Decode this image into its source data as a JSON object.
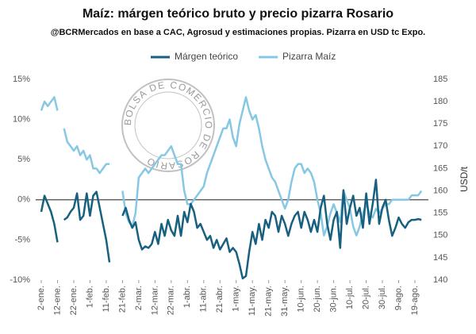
{
  "chart_data": {
    "type": "line",
    "title": "Maíz: márgen teórico bruto y precio pizarra Rosario",
    "subtitle": "@BCRMercados en base a CAC, Agrosud y estimaciones propias. Pizarra en USD tc Expo.",
    "watermark": "BOLSA DE COMERCIO DE ROSARIO",
    "y2label": "USD/t",
    "categories": [
      "2-ene.",
      null,
      null,
      null,
      null,
      "12-ene.",
      null,
      null,
      null,
      null,
      "22-ene.",
      null,
      null,
      null,
      null,
      "1-feb.",
      null,
      null,
      null,
      null,
      "11-feb.",
      null,
      null,
      null,
      null,
      "21-feb.",
      null,
      null,
      null,
      null,
      "2-mar.",
      null,
      null,
      null,
      null,
      "12-mar.",
      null,
      null,
      null,
      null,
      "22-mar.",
      null,
      null,
      null,
      null,
      "1-abr.",
      null,
      null,
      null,
      null,
      "11-abr.",
      null,
      null,
      null,
      null,
      "21-abr.",
      null,
      null,
      null,
      null,
      "1-may.",
      null,
      null,
      null,
      null,
      "11-may.",
      null,
      null,
      null,
      null,
      "21-may.",
      null,
      null,
      null,
      null,
      "31-may.",
      null,
      null,
      null,
      null,
      "10-jun.",
      null,
      null,
      null,
      null,
      "20-jun.",
      null,
      null,
      null,
      null,
      "30-jun.",
      null,
      null,
      null,
      null,
      "10-jul.",
      null,
      null,
      null,
      null,
      "20-jul.",
      null,
      null,
      null,
      null,
      "30-jul.",
      null,
      null,
      null,
      null,
      "9-ago.",
      null,
      null,
      null,
      null,
      "19-ago.",
      null,
      null
    ],
    "series": [
      {
        "name": "Pizarra Maíz",
        "color": "#86c8e4",
        "axis": "y2",
        "values": [
          178,
          180,
          179,
          180,
          181,
          178,
          null,
          174,
          171,
          170,
          169,
          170,
          168,
          169,
          167,
          168,
          165,
          165,
          164,
          165,
          166,
          166,
          null,
          null,
          null,
          160,
          155,
          153,
          152,
          155,
          163,
          164,
          165,
          164,
          165,
          166,
          167,
          168,
          168,
          169,
          170,
          168,
          166,
          166,
          160,
          157,
          157,
          158,
          159,
          160,
          161,
          164,
          166,
          168,
          170,
          172,
          174,
          174,
          176,
          172,
          170,
          175,
          178,
          181,
          178,
          176,
          177,
          174,
          170,
          167,
          165,
          163,
          162,
          160,
          158,
          156,
          158,
          162,
          165,
          166,
          166,
          164,
          165,
          164,
          162,
          158,
          155,
          150,
          152,
          155,
          157,
          155,
          153,
          160,
          158,
          156,
          152,
          150,
          152,
          155,
          157,
          155,
          154,
          156,
          155,
          156,
          157,
          157,
          158,
          158,
          158,
          158,
          158,
          158,
          159,
          159,
          159,
          160
        ]
      },
      {
        "name": "Márgen teórico",
        "color": "#17607f",
        "values": [
          -1.5,
          0.5,
          -0.5,
          -1.5,
          -3,
          -5.3,
          null,
          -2.5,
          -2.2,
          -1.5,
          -1,
          0.8,
          -2.5,
          -2,
          0.8,
          -2,
          0.5,
          1,
          -1,
          -3,
          -5,
          -7.8,
          null,
          null,
          null,
          -2,
          -1,
          -2.5,
          -3.5,
          -2.8,
          -5,
          -6.2,
          -5.8,
          -6,
          -5.5,
          -4,
          -5.5,
          -3,
          -4.5,
          -2.5,
          -3.8,
          -4.5,
          -2,
          -4.5,
          -1.5,
          -2.8,
          -0.5,
          -1.5,
          -3.5,
          -3,
          -4,
          -5,
          -4.5,
          -6,
          -5,
          -6.2,
          -5.5,
          -4.8,
          -6.5,
          -6,
          -6.5,
          -8,
          -9.8,
          -9.5,
          -6.5,
          -4,
          -5.5,
          -3,
          -5,
          -2.5,
          -3.5,
          -1.5,
          -2,
          -4,
          -2,
          -3,
          -4.5,
          -3,
          -2,
          -1.5,
          -3.5,
          -1.5,
          -2.5,
          -4,
          -2.5,
          -4,
          -1,
          0.5,
          -3,
          -5,
          -2.5,
          -1.5,
          -6,
          1.2,
          -3,
          -1,
          0.5,
          -2,
          -1,
          -3.5,
          0.8,
          -3,
          -0.5,
          2.5,
          -3,
          -1,
          0,
          -2.5,
          -4.5,
          -3.5,
          -2.2,
          -3,
          -3.5,
          -2.8,
          -2.5,
          -2.5,
          -2.4,
          -2.5
        ]
      }
    ],
    "legend_order": [
      1,
      0
    ],
    "ylim": [
      -10,
      15
    ],
    "yticks": [
      {
        "value": -10,
        "label": "-10%"
      },
      {
        "value": -5,
        "label": "-5%"
      },
      {
        "value": 0,
        "label": "0%"
      },
      {
        "value": 5,
        "label": "5%"
      },
      {
        "value": 10,
        "label": "10%"
      },
      {
        "value": 15,
        "label": "15%"
      }
    ],
    "y2lim": [
      140,
      185
    ],
    "y2ticks": [
      140,
      145,
      150,
      155,
      160,
      165,
      170,
      175,
      180,
      185
    ],
    "zero_line": true
  }
}
